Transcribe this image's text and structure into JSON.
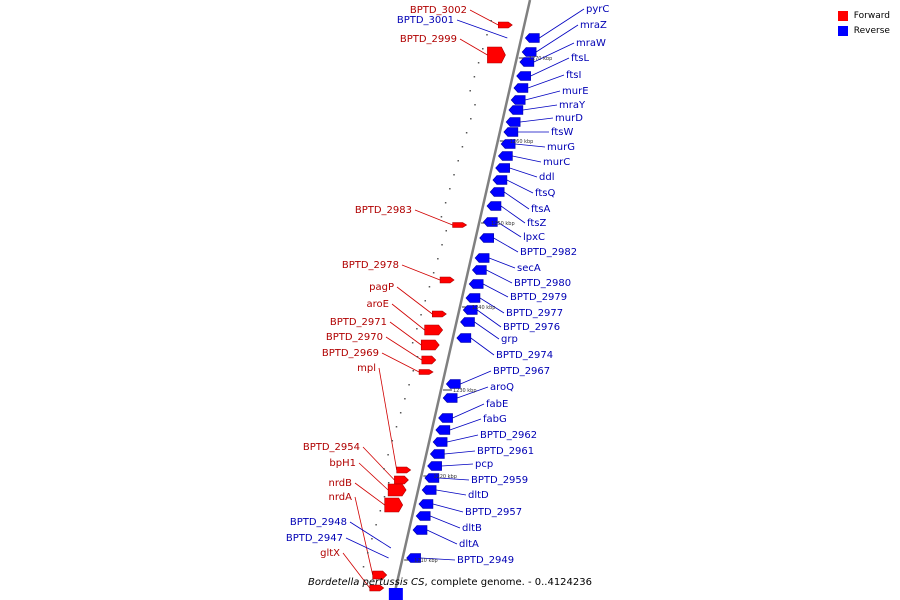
{
  "legend": [
    {
      "label": "Forward",
      "color": "#ff0000"
    },
    {
      "label": "Reverse",
      "color": "#0000ff"
    }
  ],
  "caption": {
    "prefix": "Bordetella pertussis CS",
    "suffix": ", complete genome. - 0..4124236"
  },
  "colors": {
    "forward": "#ff0000",
    "reverse": "#0000ff",
    "backbone": "#808080"
  },
  "scale_ticks": [
    "1270 kbp",
    "1260 kbp",
    "1250 kbp",
    "1240 kbp",
    "1230 kbp",
    "1220 kbp",
    "1210 kbp"
  ],
  "forward_genes": [
    "BPTD_3002",
    "BPTD_2999",
    "BPTD_2983",
    "BPTD_2978",
    "pagP",
    "aroE",
    "BPTD_2971",
    "BPTD_2970",
    "BPTD_2969",
    "mpl",
    "BPTD_2954",
    "bpH1",
    "nrdB",
    "nrdA",
    "gltX"
  ],
  "reverse_genes_left": [
    "BPTD_3001",
    "BPTD_2948",
    "BPTD_2947"
  ],
  "reverse_genes_right": [
    "pyrC",
    "mraZ",
    "mraW",
    "ftsL",
    "ftsI",
    "murE",
    "mraY",
    "murD",
    "ftsW",
    "murG",
    "murC",
    "ddl",
    "ftsQ",
    "ftsA",
    "ftsZ",
    "lpxC",
    "BPTD_2982",
    "secA",
    "BPTD_2980",
    "BPTD_2979",
    "BPTD_2977",
    "BPTD_2976",
    "grp",
    "BPTD_2974",
    "BPTD_2967",
    "aroQ",
    "fabE",
    "fabG",
    "BPTD_2962",
    "BPTD_2961",
    "pcp",
    "BPTD_2959",
    "dltD",
    "BPTD_2957",
    "dltB",
    "dltA",
    "BPTD_2949"
  ]
}
